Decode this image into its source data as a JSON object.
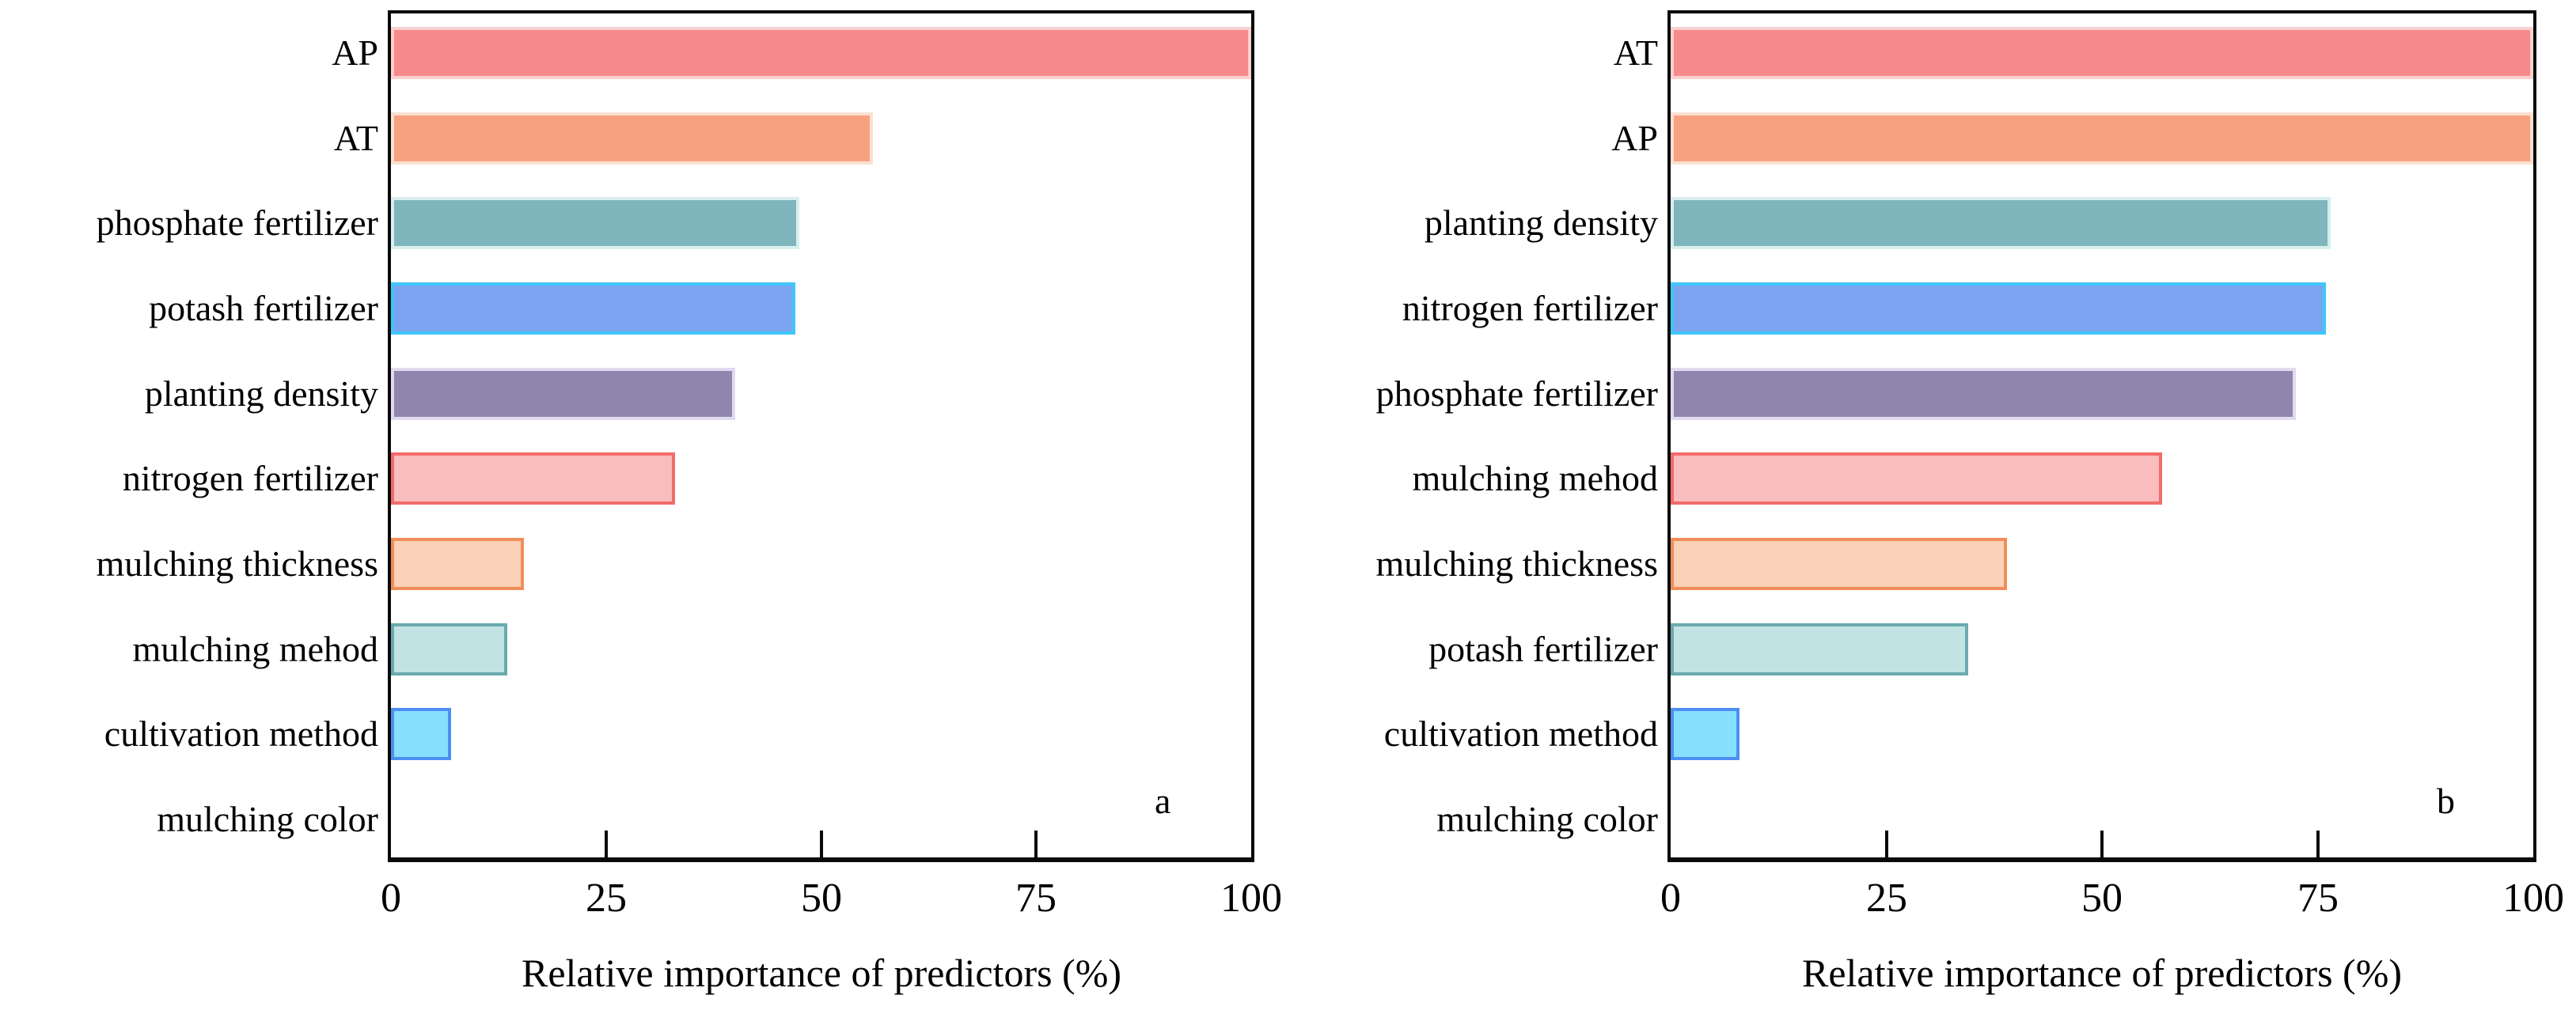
{
  "figure_title": "",
  "chart_data": [
    {
      "type": "bar",
      "orientation": "horizontal",
      "panel_label": "a",
      "xlabel": "Relative importance of predictors (%)",
      "xlim": [
        0,
        100
      ],
      "x_ticks": [
        0,
        25,
        50,
        75,
        100
      ],
      "x_tick_labels": [
        "0",
        "25",
        "50",
        "75",
        "100"
      ],
      "grid": false,
      "legend": false,
      "categories": [
        "AP",
        "AT",
        "phosphate fertilizer",
        "potash fertilizer",
        "planting density",
        "nitrogen fertilizer",
        "mulching thickness",
        "mulching mehod",
        "cultivation method",
        "mulching color"
      ],
      "values": [
        100,
        56,
        47.5,
        47,
        40,
        33,
        15.5,
        13.5,
        7,
        0
      ],
      "bar_fill_colors": [
        "#F78A8A",
        "#F7A181",
        "#7FB5BC",
        "#7AA4F0",
        "#8F85AD",
        "#F9BDBD",
        "#FBD1B8",
        "#C2E3E3",
        "#86DFFC",
        "none"
      ],
      "bar_edge_colors": [
        "#FBD0D0",
        "#FCE0D0",
        "#D8EEEF",
        "#3FC6FB",
        "#E0D9F0",
        "#F26B6B",
        "#F08E5A",
        "#6AAAAD",
        "#4D8FF0",
        "none"
      ]
    },
    {
      "type": "bar",
      "orientation": "horizontal",
      "panel_label": "b",
      "xlabel": "Relative importance of predictors (%)",
      "xlim": [
        0,
        100
      ],
      "x_ticks": [
        0,
        25,
        50,
        75,
        100
      ],
      "x_tick_labels": [
        "0",
        "25",
        "50",
        "75",
        "100"
      ],
      "grid": false,
      "legend": false,
      "categories": [
        "AT",
        "AP",
        "planting density",
        "nitrogen fertilizer",
        "phosphate fertilizer",
        "mulching mehod",
        "mulching thickness",
        "potash fertilizer",
        "cultivation method",
        "mulching color"
      ],
      "values": [
        100,
        100,
        76.5,
        76,
        72.5,
        57,
        39,
        34.5,
        8,
        0
      ],
      "bar_fill_colors": [
        "#F78A8A",
        "#F7A181",
        "#7FB5BC",
        "#7AA4F0",
        "#8F85AD",
        "#F9BDBD",
        "#FBD1B8",
        "#C2E3E3",
        "#86DFFC",
        "none"
      ],
      "bar_edge_colors": [
        "#FBD0D0",
        "#FCE0D0",
        "#D8EEEF",
        "#3FC6FB",
        "#E0D9F0",
        "#F26B6B",
        "#F08E5A",
        "#6AAAAD",
        "#4D8FF0",
        "none"
      ]
    }
  ],
  "colors": {
    "axis": "#0a0a0a",
    "background": "#ffffff",
    "text": "#000000"
  }
}
